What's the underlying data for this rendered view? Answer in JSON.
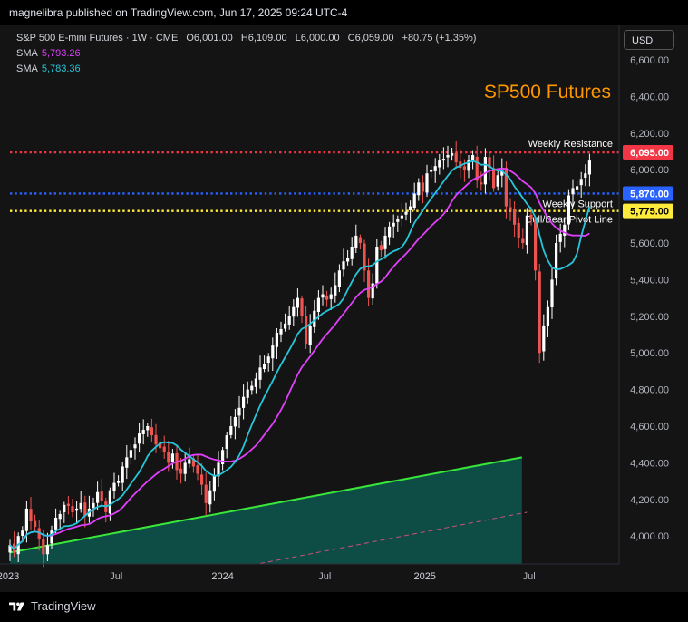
{
  "header": {
    "published": "magnelibra published on TradingView.com, Jun 17, 2025 09:24 UTC-4"
  },
  "legend": {
    "symbol": "S&P 500 E-mini Futures · 1W · CME",
    "ohlc": {
      "o_label": "O",
      "o": "6,001.00",
      "h_label": "H",
      "h": "6,109.00",
      "l_label": "L",
      "l": "6,000.00",
      "c_label": "C",
      "c": "6,059.00",
      "change": "+80.75 (+1.35%)"
    },
    "sma1": {
      "label": "SMA",
      "value": "5,793.26",
      "color": "#e040fb"
    },
    "sma2": {
      "label": "SMA",
      "value": "5,783.36",
      "color": "#26c6da"
    }
  },
  "currency_button": "USD",
  "footer": {
    "brand": "TradingView"
  },
  "chart_data": {
    "type": "candlestick",
    "title": "SP500 Futures",
    "y_ticks": [
      "6,600.00",
      "6,400.00",
      "6,200.00",
      "6,000.00",
      "5,600.00",
      "5,400.00",
      "5,200.00",
      "5,000.00",
      "4,800.00",
      "4,600.00",
      "4,400.00",
      "4,200.00",
      "4,000.00"
    ],
    "x_ticks": [
      "2023",
      "Jul",
      "2024",
      "Jul",
      "2025",
      "Jul"
    ],
    "ylim": [
      3850,
      6700
    ],
    "levels": [
      {
        "name": "Weekly Resistance",
        "value": 6095,
        "label": "6,095.00",
        "color": "#f23645"
      },
      {
        "name": "Weekly Support",
        "value": 5870,
        "label": "5,870.00",
        "color": "#2962ff"
      },
      {
        "name": "Bull/Bear Pivot Line",
        "value": 5775,
        "label": "5,775.00",
        "color": "#ffeb3b"
      }
    ],
    "trendline": {
      "color": "#39e639",
      "start": [
        0,
        3910
      ],
      "end": [
        123,
        4430
      ]
    },
    "dashed_line": {
      "color": "#d0517a",
      "start": [
        60,
        3850
      ],
      "end": [
        124,
        4130
      ]
    },
    "close": [
      3950,
      3910,
      4000,
      4030,
      4150,
      4080,
      4050,
      3985,
      3900,
      3950,
      4030,
      4100,
      4120,
      4170,
      4165,
      4130,
      4150,
      4180,
      4110,
      4150,
      4180,
      4240,
      4190,
      4130,
      4250,
      4290,
      4300,
      4380,
      4430,
      4470,
      4500,
      4560,
      4580,
      4600,
      4550,
      4500,
      4480,
      4460,
      4400,
      4450,
      4360,
      4340,
      4400,
      4420,
      4380,
      4340,
      4280,
      4180,
      4250,
      4330,
      4400,
      4470,
      4550,
      4600,
      4650,
      4700,
      4760,
      4800,
      4820,
      4860,
      4920,
      4940,
      4980,
      5040,
      5110,
      5130,
      5160,
      5200,
      5250,
      5300,
      5200,
      5050,
      5150,
      5230,
      5300,
      5320,
      5290,
      5320,
      5370,
      5450,
      5500,
      5520,
      5580,
      5640,
      5600,
      5450,
      5300,
      5380,
      5580,
      5560,
      5640,
      5690,
      5710,
      5730,
      5750,
      5770,
      5800,
      5870,
      5930,
      5880,
      5980,
      6000,
      6020,
      6050,
      6060,
      6080,
      6090,
      6040,
      6010,
      6000,
      6050,
      6080,
      5940,
      5920,
      6070,
      6010,
      5900,
      5970,
      6000,
      5800,
      5780,
      5700,
      5630,
      5600,
      5750,
      5730,
      5450,
      5000,
      5150,
      5250,
      5400,
      5600,
      5650,
      5700,
      5860,
      5900,
      5910,
      5950,
      5980,
      6050
    ],
    "sma_fast": {
      "name": "SMA",
      "value_label": "5,783.36",
      "color": "#26c6da"
    },
    "sma_slow": {
      "name": "SMA",
      "value_label": "5,793.26",
      "color": "#e040fb"
    }
  }
}
